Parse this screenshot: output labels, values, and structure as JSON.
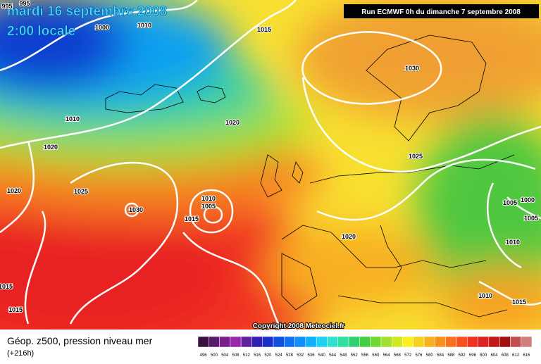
{
  "header": {
    "date": "mardi 16 septembre 2008",
    "time": "2:00 locale",
    "run": "Run ECMWF 0h du dimanche 7 septembre 2008"
  },
  "map": {
    "isobar_labels": [
      995,
      995,
      1000,
      1010,
      1015,
      1010,
      1020,
      1020,
      1025,
      1030,
      1020,
      1010,
      1005,
      1015,
      1030,
      1025,
      1020,
      1005,
      1000,
      1005,
      1010,
      1010,
      1015,
      1015,
      1015
    ],
    "copyright": "Copyright 2008 Meteociel.fr"
  },
  "legend": {
    "title": "Géop. z500, pression niveau mer",
    "lead": "(+216h)",
    "labels": [
      496,
      500,
      504,
      508,
      512,
      516,
      520,
      524,
      528,
      532,
      536,
      540,
      544,
      548,
      552,
      556,
      560,
      564,
      568,
      572,
      576,
      580,
      584,
      588,
      592,
      596,
      600,
      604,
      608,
      612,
      616
    ],
    "colors": [
      "#3a1040",
      "#5a1a6a",
      "#7a208a",
      "#9a28aa",
      "#6020a0",
      "#3020b0",
      "#1830c8",
      "#1050e0",
      "#1070f0",
      "#1090f8",
      "#10b0f8",
      "#20d0f0",
      "#30e0d0",
      "#30e0a0",
      "#30d070",
      "#40d040",
      "#70d830",
      "#a0e030",
      "#d0e820",
      "#f8f020",
      "#f8d020",
      "#f8b020",
      "#f89020",
      "#f87020",
      "#f85020",
      "#f03020",
      "#e02020",
      "#c01818",
      "#a01010",
      "#c05050",
      "#d08080"
    ]
  }
}
